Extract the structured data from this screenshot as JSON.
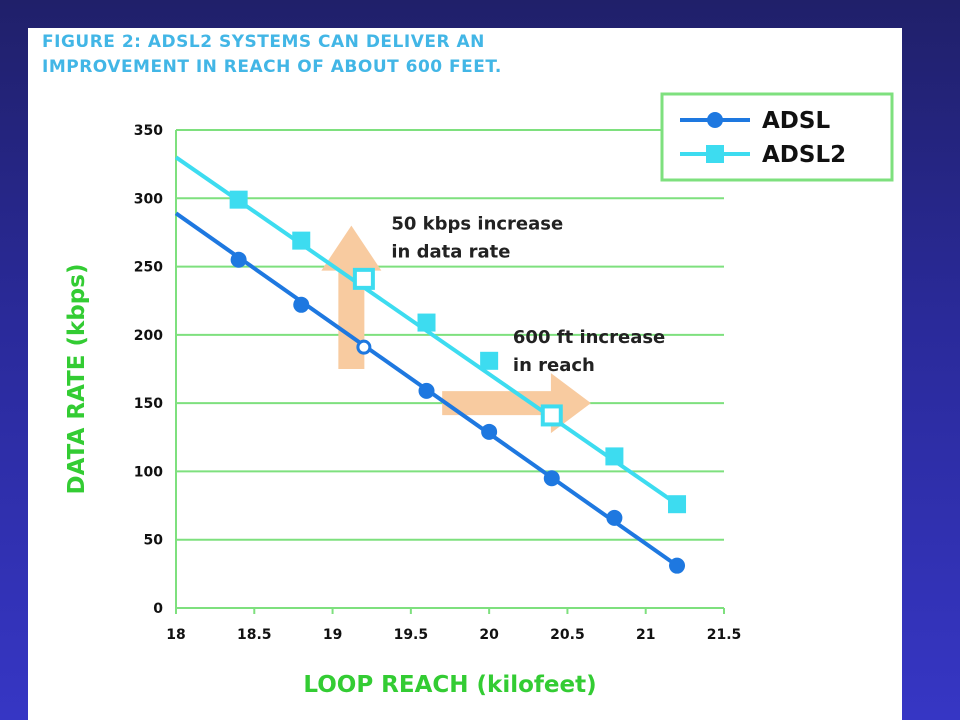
{
  "chart_data": {
    "type": "line",
    "title_lines": [
      "FIGURE 2: ADSL2 SYSTEMS CAN DELIVER AN",
      "IMPROVEMENT IN REACH OF ABOUT 600 FEET."
    ],
    "xlabel": "LOOP REACH (kilofeet)",
    "ylabel": "DATA RATE (kbps)",
    "xlim": [
      18,
      21.5
    ],
    "ylim": [
      0,
      350
    ],
    "x_ticks": [
      "18",
      "18.5",
      "19",
      "19.5",
      "20",
      "20.5",
      "21",
      "21.5"
    ],
    "y_ticks": [
      "0",
      "50",
      "100",
      "150",
      "200",
      "250",
      "300",
      "350"
    ],
    "grid": "horizontal",
    "legend_position": "top-right",
    "series": [
      {
        "name": "ADSL",
        "color": "#1e78e0",
        "marker": "circle",
        "line_x": [
          18,
          21.2
        ],
        "line_y": [
          289,
          31
        ],
        "points": [
          {
            "x": 18.4,
            "y": 255
          },
          {
            "x": 18.8,
            "y": 222
          },
          {
            "x": 19.6,
            "y": 159
          },
          {
            "x": 20.0,
            "y": 129
          },
          {
            "x": 20.4,
            "y": 95
          },
          {
            "x": 20.8,
            "y": 66
          },
          {
            "x": 21.2,
            "y": 31
          }
        ],
        "highlight_points": [
          {
            "x": 19.2,
            "y": 191
          }
        ]
      },
      {
        "name": "ADSL2",
        "color": "#3ddcf0",
        "marker": "square",
        "line_x": [
          18,
          21.2
        ],
        "line_y": [
          330,
          76
        ],
        "points": [
          {
            "x": 18.4,
            "y": 299
          },
          {
            "x": 18.8,
            "y": 269
          },
          {
            "x": 19.6,
            "y": 209
          },
          {
            "x": 20.0,
            "y": 181
          },
          {
            "x": 20.8,
            "y": 111
          },
          {
            "x": 21.2,
            "y": 76
          }
        ],
        "highlight_points": [
          {
            "x": 19.2,
            "y": 241
          },
          {
            "x": 20.4,
            "y": 141
          }
        ]
      }
    ],
    "annotations": [
      {
        "lines": [
          "50 kbps increase",
          "in data rate"
        ],
        "direction": "up",
        "x": 19.12,
        "y_from": 175,
        "y_to": 280
      },
      {
        "lines": [
          "600 ft increase",
          "in reach"
        ],
        "direction": "right",
        "x_from": 19.7,
        "x_to": 20.65,
        "y": 150
      }
    ]
  }
}
